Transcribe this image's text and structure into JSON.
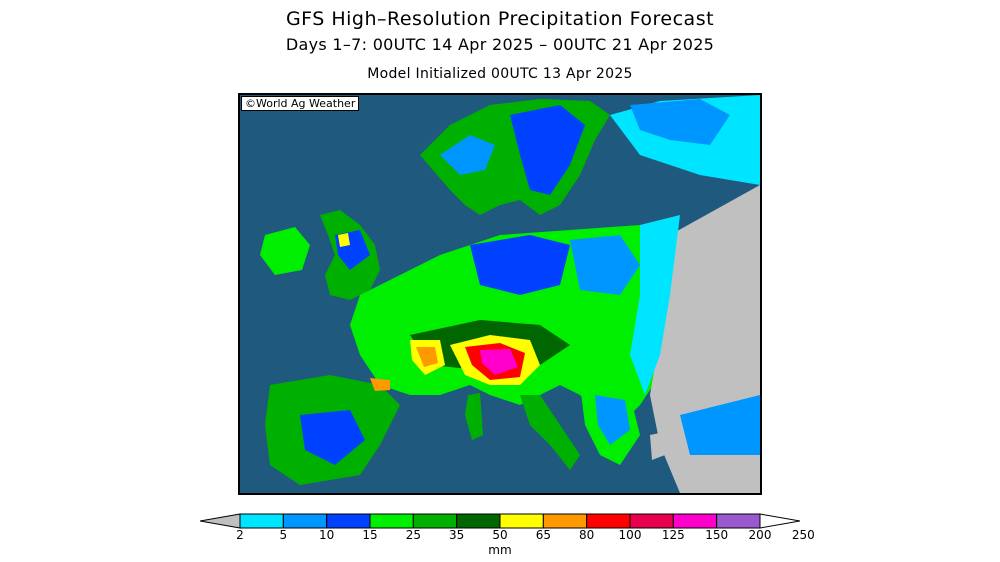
{
  "header": {
    "title": "GFS High–Resolution Precipitation Forecast",
    "period": "Days 1–7: 00UTC 14 Apr 2025 – 00UTC 21 Apr 2025",
    "init": "Model Initialized 00UTC 13 Apr 2025"
  },
  "map": {
    "watermark": "©World Ag Weather",
    "region": "Europe"
  },
  "legend": {
    "units": "mm",
    "ticks": [
      "2",
      "5",
      "10",
      "15",
      "25",
      "35",
      "50",
      "65",
      "80",
      "100",
      "125",
      "150",
      "200",
      "250"
    ],
    "bins": [
      {
        "color": "#c0c0c0"
      },
      {
        "color": "#00e5ff"
      },
      {
        "color": "#0096ff"
      },
      {
        "color": "#0040ff"
      },
      {
        "color": "#00ee00"
      },
      {
        "color": "#00b000"
      },
      {
        "color": "#006600"
      },
      {
        "color": "#ffff00"
      },
      {
        "color": "#ff9900"
      },
      {
        "color": "#ff0000"
      },
      {
        "color": "#e6004d"
      },
      {
        "color": "#ff00cc"
      },
      {
        "color": "#9b59d0"
      },
      {
        "color": "#ffffff"
      }
    ]
  }
}
